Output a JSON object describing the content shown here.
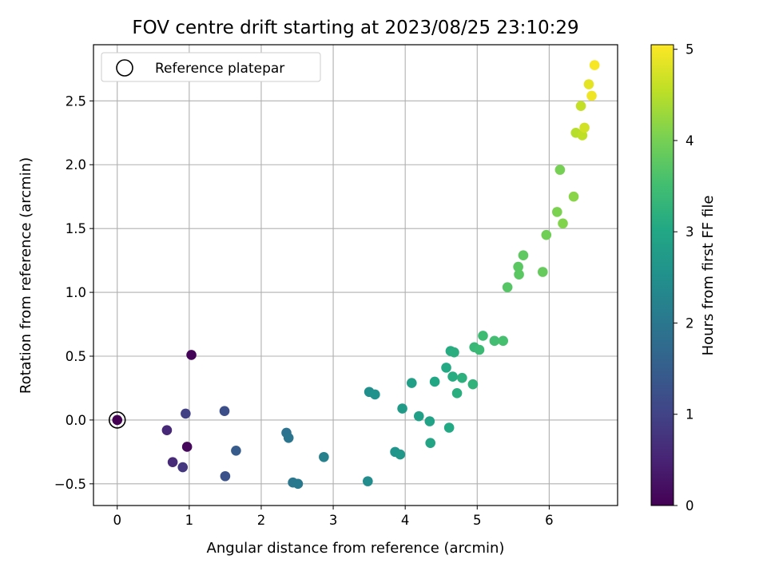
{
  "chart_data": {
    "type": "scatter",
    "title": "FOV centre drift starting at 2023/08/25 23:10:29",
    "xlabel": "Angular distance from reference (arcmin)",
    "ylabel": "Rotation from reference (arcmin)",
    "colorbar_label": "Hours from first FF file",
    "colormap": "viridis",
    "xlim": [
      -0.33,
      6.95
    ],
    "ylim": [
      -0.67,
      2.94
    ],
    "clim": [
      0,
      5.05
    ],
    "xticks": [
      0,
      1,
      2,
      3,
      4,
      5,
      6
    ],
    "yticks": [
      -0.5,
      0.0,
      0.5,
      1.0,
      1.5,
      2.0,
      2.5
    ],
    "yticklabels": [
      "−0.5",
      "0.0",
      "0.5",
      "1.0",
      "1.5",
      "2.0",
      "2.5"
    ],
    "cticks": [
      0,
      1,
      2,
      3,
      4,
      5
    ],
    "grid": true,
    "legend": {
      "position": "upper-left",
      "label": "Reference platepar"
    },
    "reference_point": {
      "x": 0,
      "y": 0,
      "c": 0
    },
    "points": [
      {
        "x": 1.03,
        "y": 0.51,
        "c": 0.05
      },
      {
        "x": 0.97,
        "y": -0.21,
        "c": 0.1
      },
      {
        "x": 0.69,
        "y": -0.08,
        "c": 0.55
      },
      {
        "x": 0.77,
        "y": -0.33,
        "c": 0.6
      },
      {
        "x": 0.91,
        "y": -0.37,
        "c": 0.8
      },
      {
        "x": 0.95,
        "y": 0.05,
        "c": 0.95
      },
      {
        "x": 1.49,
        "y": 0.07,
        "c": 1.2
      },
      {
        "x": 1.5,
        "y": -0.44,
        "c": 1.25
      },
      {
        "x": 1.65,
        "y": -0.24,
        "c": 1.45
      },
      {
        "x": 2.35,
        "y": -0.1,
        "c": 1.9
      },
      {
        "x": 2.38,
        "y": -0.14,
        "c": 1.95
      },
      {
        "x": 2.44,
        "y": -0.49,
        "c": 2.0
      },
      {
        "x": 2.51,
        "y": -0.5,
        "c": 2.05
      },
      {
        "x": 2.87,
        "y": -0.29,
        "c": 2.2
      },
      {
        "x": 3.48,
        "y": -0.48,
        "c": 2.45
      },
      {
        "x": 3.5,
        "y": 0.22,
        "c": 2.5
      },
      {
        "x": 3.58,
        "y": 0.2,
        "c": 2.55
      },
      {
        "x": 3.86,
        "y": -0.25,
        "c": 2.6
      },
      {
        "x": 3.93,
        "y": -0.27,
        "c": 2.65
      },
      {
        "x": 3.96,
        "y": 0.09,
        "c": 2.75
      },
      {
        "x": 4.09,
        "y": 0.29,
        "c": 2.85
      },
      {
        "x": 4.19,
        "y": 0.03,
        "c": 2.85
      },
      {
        "x": 4.34,
        "y": -0.01,
        "c": 2.9
      },
      {
        "x": 4.35,
        "y": -0.18,
        "c": 2.95
      },
      {
        "x": 4.41,
        "y": 0.3,
        "c": 3.0
      },
      {
        "x": 4.57,
        "y": 0.41,
        "c": 3.05
      },
      {
        "x": 4.61,
        "y": -0.06,
        "c": 3.05
      },
      {
        "x": 4.63,
        "y": 0.54,
        "c": 3.1
      },
      {
        "x": 4.66,
        "y": 0.34,
        "c": 3.1
      },
      {
        "x": 4.68,
        "y": 0.53,
        "c": 3.15
      },
      {
        "x": 4.72,
        "y": 0.21,
        "c": 3.15
      },
      {
        "x": 4.79,
        "y": 0.33,
        "c": 3.2
      },
      {
        "x": 4.94,
        "y": 0.28,
        "c": 3.25
      },
      {
        "x": 4.96,
        "y": 0.57,
        "c": 3.35
      },
      {
        "x": 5.03,
        "y": 0.55,
        "c": 3.4
      },
      {
        "x": 5.08,
        "y": 0.66,
        "c": 3.45
      },
      {
        "x": 5.24,
        "y": 0.62,
        "c": 3.5
      },
      {
        "x": 5.36,
        "y": 0.62,
        "c": 3.55
      },
      {
        "x": 5.42,
        "y": 1.04,
        "c": 3.7
      },
      {
        "x": 5.57,
        "y": 1.2,
        "c": 3.75
      },
      {
        "x": 5.58,
        "y": 1.14,
        "c": 3.75
      },
      {
        "x": 5.64,
        "y": 1.29,
        "c": 3.8
      },
      {
        "x": 5.91,
        "y": 1.16,
        "c": 3.85
      },
      {
        "x": 5.96,
        "y": 1.45,
        "c": 3.95
      },
      {
        "x": 6.11,
        "y": 1.63,
        "c": 4.05
      },
      {
        "x": 6.15,
        "y": 1.96,
        "c": 4.0
      },
      {
        "x": 6.19,
        "y": 1.54,
        "c": 4.1
      },
      {
        "x": 6.34,
        "y": 1.75,
        "c": 4.15
      },
      {
        "x": 6.37,
        "y": 2.25,
        "c": 4.5
      },
      {
        "x": 6.44,
        "y": 2.46,
        "c": 4.6
      },
      {
        "x": 6.46,
        "y": 2.23,
        "c": 4.55
      },
      {
        "x": 6.49,
        "y": 2.29,
        "c": 4.7
      },
      {
        "x": 6.55,
        "y": 2.63,
        "c": 4.85
      },
      {
        "x": 6.59,
        "y": 2.54,
        "c": 4.95
      },
      {
        "x": 6.63,
        "y": 2.78,
        "c": 5.0
      }
    ]
  }
}
